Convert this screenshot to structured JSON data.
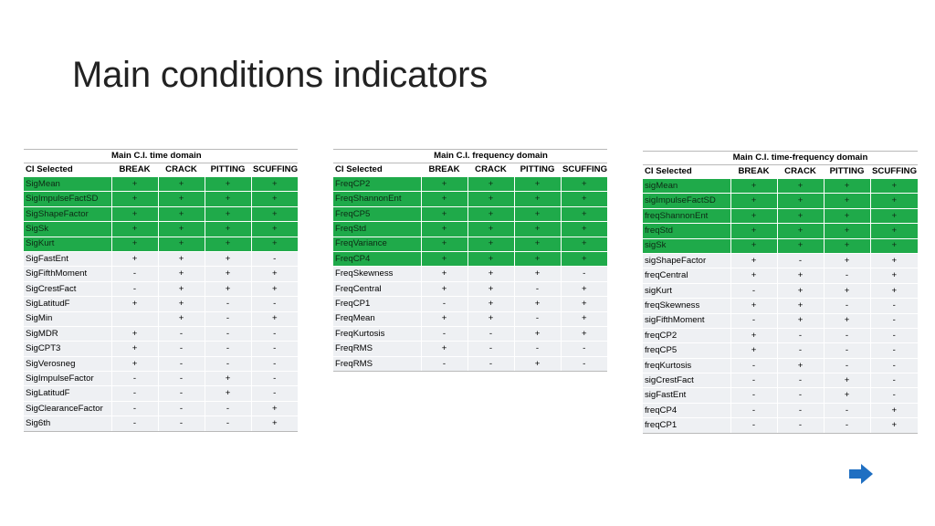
{
  "title": "Main conditions indicators",
  "columns": [
    "CI Selected",
    "BREAK",
    "CRACK",
    "PITTING",
    "SCUFFING"
  ],
  "tables": [
    {
      "caption": "Main C.I. time domain",
      "rows": [
        {
          "name": "SigMean",
          "hl": true,
          "v": [
            "+",
            "+",
            "+",
            "+"
          ]
        },
        {
          "name": "SigImpulseFactSD",
          "hl": true,
          "v": [
            "+",
            "+",
            "+",
            "+"
          ]
        },
        {
          "name": "SigShapeFactor",
          "hl": true,
          "v": [
            "+",
            "+",
            "+",
            "+"
          ]
        },
        {
          "name": "SigSk",
          "hl": true,
          "v": [
            "+",
            "+",
            "+",
            "+"
          ]
        },
        {
          "name": "SigKurt",
          "hl": true,
          "v": [
            "+",
            "+",
            "+",
            "+"
          ]
        },
        {
          "name": "SigFastEnt",
          "hl": false,
          "v": [
            "+",
            "+",
            "+",
            "-"
          ]
        },
        {
          "name": "SigFifthMoment",
          "hl": false,
          "v": [
            "-",
            "+",
            "+",
            "+"
          ]
        },
        {
          "name": "SigCrestFact",
          "hl": false,
          "v": [
            "-",
            "+",
            "+",
            "+"
          ]
        },
        {
          "name": "SigLatitudF",
          "hl": false,
          "v": [
            "+",
            "+",
            "-",
            "-"
          ]
        },
        {
          "name": "SigMin",
          "hl": false,
          "v": [
            "",
            "+",
            "-",
            "+"
          ]
        },
        {
          "name": "SigMDR",
          "hl": false,
          "v": [
            "+",
            "-",
            "-",
            "-"
          ]
        },
        {
          "name": "SigCPT3",
          "hl": false,
          "v": [
            "+",
            "-",
            "-",
            "-"
          ]
        },
        {
          "name": "SigVerosneg",
          "hl": false,
          "v": [
            "+",
            "-",
            "-",
            "-"
          ]
        },
        {
          "name": "SigImpulseFactor",
          "hl": false,
          "v": [
            "-",
            "-",
            "+",
            "-"
          ]
        },
        {
          "name": "SigLatitudF",
          "hl": false,
          "v": [
            "-",
            "-",
            "+",
            "-"
          ]
        },
        {
          "name": "SigClearanceFactor",
          "hl": false,
          "v": [
            "-",
            "-",
            "-",
            "+"
          ]
        },
        {
          "name": "Sig6th",
          "hl": false,
          "v": [
            "-",
            "-",
            "-",
            "+"
          ]
        }
      ]
    },
    {
      "caption": "Main C.I. frequency domain",
      "rows": [
        {
          "name": "FreqCP2",
          "hl": true,
          "v": [
            "+",
            "+",
            "+",
            "+"
          ]
        },
        {
          "name": "FreqShannonEnt",
          "hl": true,
          "v": [
            "+",
            "+",
            "+",
            "+"
          ]
        },
        {
          "name": "FreqCP5",
          "hl": true,
          "v": [
            "+",
            "+",
            "+",
            "+"
          ]
        },
        {
          "name": "FreqStd",
          "hl": true,
          "v": [
            "+",
            "+",
            "+",
            "+"
          ]
        },
        {
          "name": "FreqVariance",
          "hl": true,
          "v": [
            "+",
            "+",
            "+",
            "+"
          ]
        },
        {
          "name": "FreqCP4",
          "hl": true,
          "v": [
            "+",
            "+",
            "+",
            "+"
          ]
        },
        {
          "name": "FreqSkewness",
          "hl": false,
          "v": [
            "+",
            "+",
            "+",
            "-"
          ]
        },
        {
          "name": "FreqCentral",
          "hl": false,
          "v": [
            "+",
            "+",
            "-",
            "+"
          ]
        },
        {
          "name": "FreqCP1",
          "hl": false,
          "v": [
            "-",
            "+",
            "+",
            "+"
          ]
        },
        {
          "name": "FreqMean",
          "hl": false,
          "v": [
            "+",
            "+",
            "-",
            "+"
          ]
        },
        {
          "name": "FreqKurtosis",
          "hl": false,
          "v": [
            "-",
            "-",
            "+",
            "+"
          ]
        },
        {
          "name": "FreqRMS",
          "hl": false,
          "v": [
            "+",
            "-",
            "-",
            "-"
          ]
        },
        {
          "name": "FreqRMS",
          "hl": false,
          "v": [
            "-",
            "-",
            "+",
            "-"
          ]
        }
      ]
    },
    {
      "caption": "Main C.I. time-frequency domain",
      "rows": [
        {
          "name": "sigMean",
          "hl": true,
          "v": [
            "+",
            "+",
            "+",
            "+"
          ]
        },
        {
          "name": "sigImpulseFactSD",
          "hl": true,
          "v": [
            "+",
            "+",
            "+",
            "+"
          ]
        },
        {
          "name": "freqShannonEnt",
          "hl": true,
          "v": [
            "+",
            "+",
            "+",
            "+"
          ]
        },
        {
          "name": "freqStd",
          "hl": true,
          "v": [
            "+",
            "+",
            "+",
            "+"
          ]
        },
        {
          "name": "sigSk",
          "hl": true,
          "v": [
            "+",
            "+",
            "+",
            "+"
          ]
        },
        {
          "name": "sigShapeFactor",
          "hl": false,
          "v": [
            "+",
            "-",
            "+",
            "+"
          ]
        },
        {
          "name": "freqCentral",
          "hl": false,
          "v": [
            "+",
            "+",
            "-",
            "+"
          ]
        },
        {
          "name": "sigKurt",
          "hl": false,
          "v": [
            "-",
            "+",
            "+",
            "+"
          ]
        },
        {
          "name": "freqSkewness",
          "hl": false,
          "v": [
            "+",
            "+",
            "-",
            "-"
          ]
        },
        {
          "name": "sigFifthMoment",
          "hl": false,
          "v": [
            "-",
            "+",
            "+",
            "-"
          ]
        },
        {
          "name": "freqCP2",
          "hl": false,
          "v": [
            "+",
            "-",
            "-",
            "-"
          ]
        },
        {
          "name": "freqCP5",
          "hl": false,
          "v": [
            "+",
            "-",
            "-",
            "-"
          ]
        },
        {
          "name": "freqKurtosis",
          "hl": false,
          "v": [
            "-",
            "+",
            "-",
            "-"
          ]
        },
        {
          "name": "sigCrestFact",
          "hl": false,
          "v": [
            "-",
            "-",
            "+",
            "-"
          ]
        },
        {
          "name": "sigFastEnt",
          "hl": false,
          "v": [
            "-",
            "-",
            "+",
            "-"
          ]
        },
        {
          "name": "freqCP4",
          "hl": false,
          "v": [
            "-",
            "-",
            "-",
            "+"
          ]
        },
        {
          "name": "freqCP1",
          "hl": false,
          "v": [
            "-",
            "-",
            "-",
            "+"
          ]
        }
      ]
    }
  ],
  "nav": {
    "next_icon": "arrow-right-icon",
    "accent": "#1f6fc2"
  },
  "colors": {
    "highlight": "#1faa4a",
    "row_bg": "#eef0f3"
  }
}
